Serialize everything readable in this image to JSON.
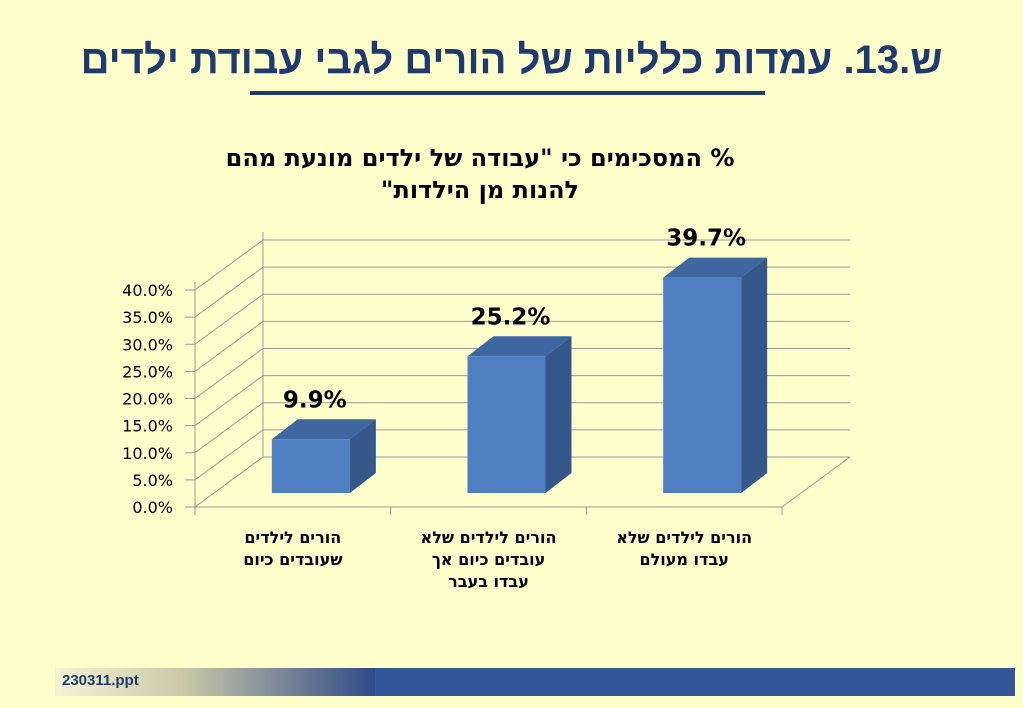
{
  "slide": {
    "title": "ש.13. עמדות כלליות של הורים לגבי עבודת ילדים",
    "footer": "230311.ppt"
  },
  "colors": {
    "title": "#1f3a6e",
    "bar_front": "#4f7fc0",
    "bar_side": "#35578a",
    "bar_top": "#3e66a0",
    "background": "#ffffcc"
  },
  "chart_data": {
    "type": "bar",
    "title": "% המסכימים כי \"עבודה של ילדים מונעת מהם להנות מן הילדות\"",
    "title_lines": [
      "% המסכימים כי \"עבודה של ילדים מונעת מהם",
      "להנות מן הילדות\""
    ],
    "categories": [
      "הורים לילדים שעובדים כיום",
      "הורים לילדים שלא עובדים כיום אך עבדו בעבר",
      "הורים לילדים שלא עבדו מעולם"
    ],
    "category_lines": [
      [
        "הורים לילדים",
        "שעובדים כיום"
      ],
      [
        "הורים לילדים שלא",
        "עובדים כיום אך",
        "עבדו בעבר"
      ],
      [
        "הורים לילדים שלא",
        "עבדו מעולם"
      ]
    ],
    "values": [
      9.9,
      25.2,
      39.7
    ],
    "data_labels": [
      "9.9%",
      "25.2%",
      "39.7%"
    ],
    "yticks": [
      "0.0%",
      "5.0%",
      "10.0%",
      "15.0%",
      "20.0%",
      "25.0%",
      "30.0%",
      "35.0%",
      "40.0%"
    ],
    "ylim": [
      0,
      40
    ],
    "grid": true,
    "legend": "none"
  }
}
